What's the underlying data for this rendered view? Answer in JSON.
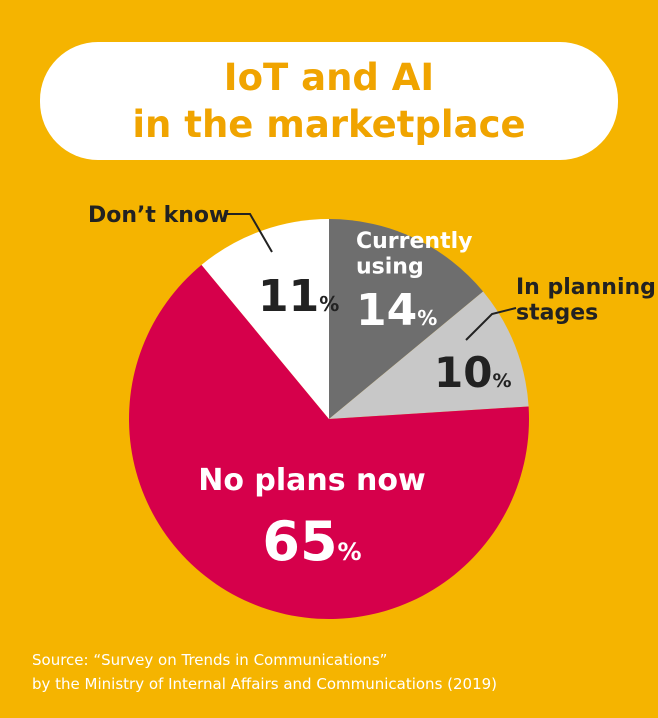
{
  "title": {
    "line1": "IoT and AI",
    "line2": "in the marketplace"
  },
  "chart_data": {
    "type": "pie",
    "unit": "%",
    "slices": [
      {
        "label": "Currently using",
        "label_lines": [
          "Currently",
          "using"
        ],
        "value": 14,
        "color": "#6e6e6e"
      },
      {
        "label": "In planning stages",
        "label_lines": [
          "In planning",
          "stages"
        ],
        "value": 10,
        "color": "#c8c8c8"
      },
      {
        "label": "No plans now",
        "label_lines": [
          "No plans now"
        ],
        "value": 65,
        "color": "#d6004b"
      },
      {
        "label": "Don’t know",
        "label_lines": [
          "Don’t know"
        ],
        "value": 11,
        "color": "#ffffff"
      }
    ]
  },
  "source": {
    "line1": "Source: “Survey on Trends in Communications”",
    "line2": "by the Ministry of Internal Affairs and Communications (2019)"
  },
  "colors": {
    "background": "#f5b400",
    "title": "#f0a400"
  }
}
